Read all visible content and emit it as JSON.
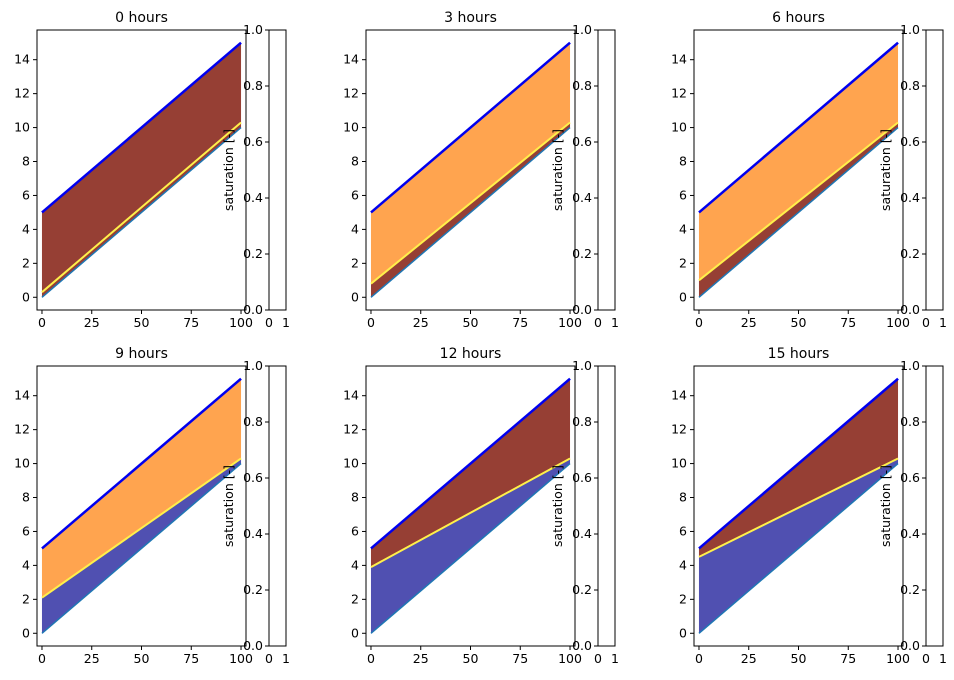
{
  "chart_data": {
    "type": "heatmap",
    "description_label": "saturation [-]",
    "x_ticks": [
      0,
      25,
      50,
      75,
      100
    ],
    "y_ticks": [
      0,
      2,
      4,
      6,
      8,
      10,
      12,
      14
    ],
    "xlim": [
      -2.5,
      102.5
    ],
    "ylim": [
      -0.75,
      15.75
    ],
    "colorbar": {
      "label": "saturation [-]",
      "ticks": [
        "0.0",
        "0.2",
        "0.4",
        "0.6",
        "0.8",
        "1.0"
      ],
      "range": [
        0,
        1
      ],
      "x_tick_labels": [
        "0",
        "1"
      ]
    },
    "domain": {
      "bottom_line": [
        [
          0,
          0
        ],
        [
          100,
          10
        ]
      ],
      "top_line": [
        [
          0,
          5
        ],
        [
          100,
          15
        ]
      ]
    },
    "panels": [
      {
        "title": "0 hours",
        "water_table_left": 0.3,
        "water_table_right": 10.3
      },
      {
        "title": "3 hours",
        "water_table_left": 0.8,
        "water_table_right": 10.3
      },
      {
        "title": "6 hours",
        "water_table_left": 1.0,
        "water_table_right": 10.3
      },
      {
        "title": "9 hours",
        "water_table_left": 2.1,
        "water_table_right": 10.3
      },
      {
        "title": "12 hours",
        "water_table_left": 3.9,
        "water_table_right": 10.3
      },
      {
        "title": "15 hours",
        "water_table_left": 4.5,
        "water_table_right": 10.3
      }
    ],
    "colors": {
      "top_boundary": "#0000ee",
      "bottom_boundary": "#1f77b4",
      "saturated": "#8b2a1e",
      "wet": "#ff9a3c",
      "dry": "#3d3da8"
    }
  }
}
